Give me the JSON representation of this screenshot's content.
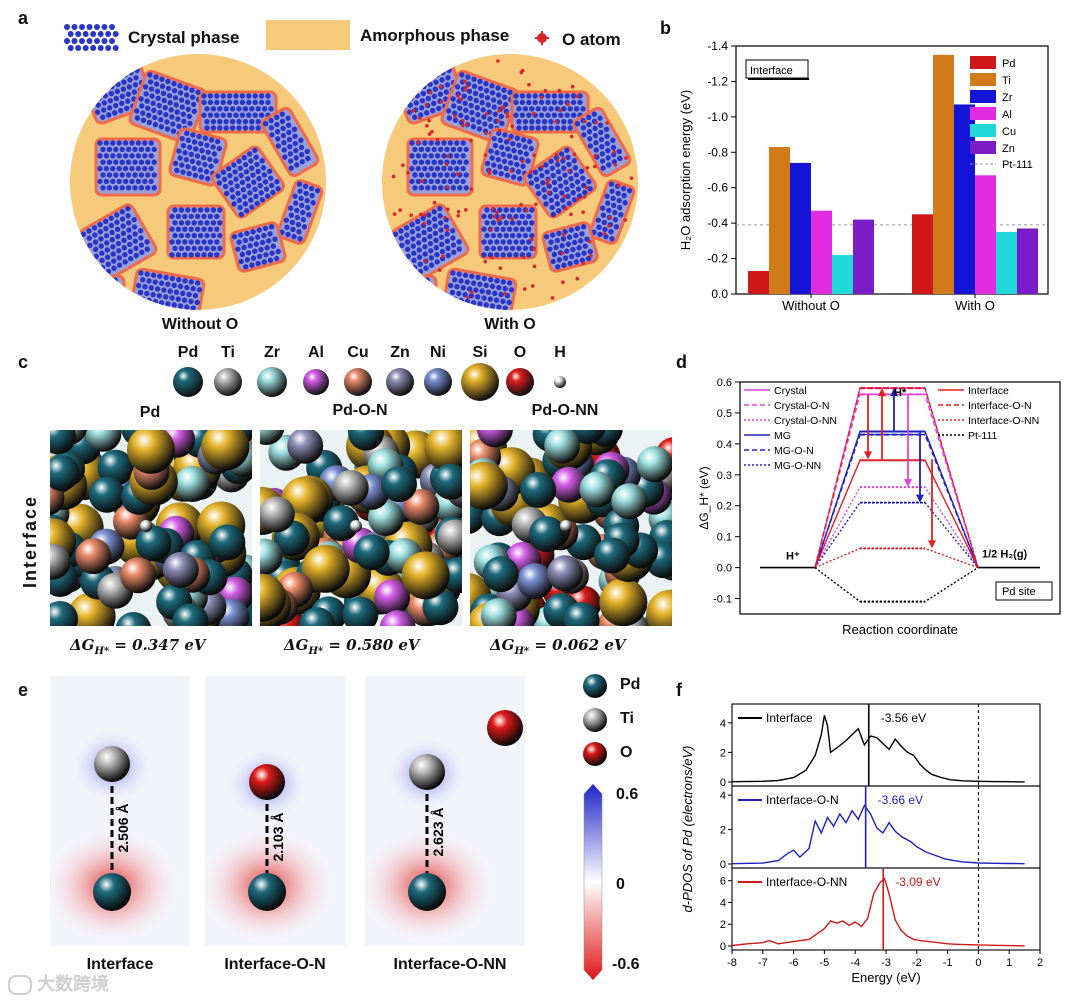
{
  "panel_labels": {
    "a": "a",
    "b": "b",
    "c": "c",
    "d": "d",
    "e": "e",
    "f": "f"
  },
  "panel_a": {
    "legend": {
      "crystal": "Crystal phase",
      "amorphous": "Amorphous phase",
      "o_atom": "O atom"
    },
    "captions": {
      "left": "Without O",
      "right": "With O"
    },
    "colors": {
      "amorphous": "#f7c97a",
      "crystal": "#2a35c8",
      "outline": "#f06a4a",
      "o_atom": "#d7262a"
    }
  },
  "panel_c": {
    "elements": [
      "Pd",
      "Ti",
      "Zr",
      "Al",
      "Cu",
      "Zn",
      "Ni",
      "Si",
      "O",
      "H"
    ],
    "element_colors": [
      "#1e6b7d",
      "#b9b9b9",
      "#9fe0e0",
      "#d35ee6",
      "#e98a6a",
      "#8e8fb6",
      "#7b8fd2",
      "#e4b32a",
      "#e01c1c",
      "#f0f0f0"
    ],
    "titles": [
      "Pd",
      "Pd-O-N",
      "Pd-O-NN"
    ],
    "side_label": "Interface",
    "dg_values": [
      "ΔG_{H*} = 0.347 eV",
      "ΔG_{H*} = 0.580 eV",
      "ΔG_{H*} = 0.062 eV"
    ],
    "dg_prefix": "ΔG",
    "dg_sub": "H*",
    "dg_numbers": [
      "= 0.347 eV",
      "= 0.580 eV",
      "= 0.062 eV"
    ]
  },
  "panel_e": {
    "legend": [
      "Pd",
      "Ti",
      "O"
    ],
    "legend_colors": [
      "#1e6b7d",
      "#bdbdbd",
      "#dd1a1a"
    ],
    "distances": [
      "2.506 Å",
      "2.103 Å",
      "2.623 Å"
    ],
    "captions": [
      "Interface",
      "Interface-O-N",
      "Interface-O-NN"
    ],
    "colorbar": {
      "max": "0.6",
      "mid": "0",
      "min": "-0.6"
    }
  },
  "watermark": "大数跨境",
  "chart_data": [
    {
      "panel": "b",
      "type": "bar",
      "categories": [
        "Without O",
        "With O"
      ],
      "series": [
        {
          "name": "Pd",
          "color": "#d01818",
          "values": [
            -0.13,
            -0.45
          ]
        },
        {
          "name": "Ti",
          "color": "#d07a1a",
          "values": [
            -0.83,
            -1.35
          ]
        },
        {
          "name": "Zr",
          "color": "#1414d6",
          "values": [
            -0.74,
            -1.07
          ]
        },
        {
          "name": "Al",
          "color": "#e22ce2",
          "values": [
            -0.47,
            -0.67
          ]
        },
        {
          "name": "Cu",
          "color": "#22d8d8",
          "values": [
            -0.22,
            -0.35
          ]
        },
        {
          "name": "Zn",
          "color": "#7a1cc8",
          "values": [
            -0.42,
            -0.37
          ]
        }
      ],
      "reference": {
        "name": "Pt-111",
        "value": -0.39
      },
      "title_box": "Interface",
      "ylabel": "H₂O adsorption energy (eV)",
      "ylim": [
        0.0,
        -1.4
      ],
      "yticks": [
        "0.0",
        "-0.2",
        "-0.4",
        "-0.6",
        "-0.8",
        "-1.0",
        "-1.2",
        "-1.4"
      ],
      "ytick_values": [
        0.0,
        -0.2,
        -0.4,
        -0.6,
        -0.8,
        -1.0,
        -1.2,
        -1.4
      ]
    },
    {
      "panel": "d",
      "type": "line",
      "xlabel": "Reaction coordinate",
      "ylabel": "ΔG_H* (eV)",
      "ylim": [
        -0.15,
        0.6
      ],
      "yticks": [
        "-0.1",
        "0.0",
        "0.1",
        "0.2",
        "0.3",
        "0.4",
        "0.5",
        "0.6"
      ],
      "ytick_values": [
        -0.1,
        0.0,
        0.1,
        0.2,
        0.3,
        0.4,
        0.5,
        0.6
      ],
      "state_labels": [
        "H⁺",
        "H*",
        "1/2 H₂(g)"
      ],
      "site_box": "Pd site",
      "series": [
        {
          "name": "Crystal",
          "color": "#e040e0",
          "dash": "solid",
          "value": 0.58
        },
        {
          "name": "Crystal-O-N",
          "color": "#e040e0",
          "dash": "dashed",
          "value": 0.56
        },
        {
          "name": "Crystal-O-NN",
          "color": "#e040e0",
          "dash": "dotted",
          "value": 0.26
        },
        {
          "name": "MG",
          "color": "#2020c0",
          "dash": "solid",
          "value": 0.44
        },
        {
          "name": "MG-O-N",
          "color": "#2020c0",
          "dash": "dashed",
          "value": 0.43
        },
        {
          "name": "MG-O-NN",
          "color": "#2020c0",
          "dash": "dotted",
          "value": 0.21
        },
        {
          "name": "Interface",
          "color": "#e02020",
          "dash": "solid",
          "value": 0.347
        },
        {
          "name": "Interface-O-N",
          "color": "#e02020",
          "dash": "dashed",
          "value": 0.58
        },
        {
          "name": "Interface-O-NN",
          "color": "#e02020",
          "dash": "dotted",
          "value": 0.062
        },
        {
          "name": "Pt-111",
          "color": "#000000",
          "dash": "dotted",
          "value": -0.11
        }
      ]
    },
    {
      "panel": "f",
      "type": "line",
      "xlabel": "Energy (eV)",
      "ylabel": "d-PDOS of Pd (electrons/eV)",
      "xlim": [
        -8,
        2
      ],
      "xticks": [
        "-8",
        "-7",
        "-6",
        "-5",
        "-4",
        "-3",
        "-2",
        "-1",
        "0",
        "1",
        "2"
      ],
      "xtick_values": [
        -8,
        -7,
        -6,
        -5,
        -4,
        -3,
        -2,
        -1,
        0,
        1,
        2
      ],
      "subplots": [
        {
          "name": "Interface",
          "color": "#000000",
          "center_label": "-3.56 eV",
          "center": -3.56,
          "yticks": [
            "0",
            "2",
            "4"
          ],
          "ytick_values": [
            0,
            2,
            4
          ],
          "ymax": 5,
          "x": [
            -8,
            -7,
            -6.5,
            -6,
            -5.6,
            -5.3,
            -5.1,
            -5.0,
            -4.9,
            -4.8,
            -4.6,
            -4.3,
            -4.1,
            -3.9,
            -3.7,
            -3.5,
            -3.3,
            -3.1,
            -2.9,
            -2.7,
            -2.5,
            -2.3,
            -2.1,
            -1.9,
            -1.7,
            -1.5,
            -1.2,
            -0.9,
            -0.5,
            0,
            0.5,
            1,
            1.5
          ],
          "y": [
            0.02,
            0.05,
            0.1,
            0.3,
            0.8,
            1.8,
            3.2,
            4.5,
            3.8,
            2.0,
            2.3,
            2.8,
            3.2,
            3.6,
            2.5,
            3.1,
            3.0,
            2.6,
            2.2,
            2.9,
            2.4,
            2.0,
            1.8,
            1.2,
            0.8,
            0.5,
            0.3,
            0.15,
            0.08,
            0.05,
            0.03,
            0.02,
            0.01
          ]
        },
        {
          "name": "Interface-O-N",
          "color": "#2020c0",
          "center_label": "-3.66 eV",
          "center": -3.66,
          "yticks": [
            "0",
            "2",
            "4"
          ],
          "ytick_values": [
            0,
            2,
            4
          ],
          "ymax": 4.3,
          "x": [
            -8,
            -7,
            -6.5,
            -6.2,
            -6.0,
            -5.8,
            -5.5,
            -5.3,
            -5.1,
            -4.9,
            -4.7,
            -4.5,
            -4.3,
            -4.1,
            -3.9,
            -3.7,
            -3.5,
            -3.3,
            -3.1,
            -2.9,
            -2.7,
            -2.5,
            -2.2,
            -2.0,
            -1.7,
            -1.4,
            -1.1,
            -0.8,
            -0.5,
            0,
            0.5,
            1,
            1.5
          ],
          "y": [
            0.02,
            0.05,
            0.2,
            0.6,
            0.8,
            0.4,
            0.9,
            2.5,
            1.8,
            2.7,
            2.2,
            2.9,
            2.4,
            3.1,
            2.6,
            3.4,
            2.9,
            2.1,
            1.8,
            2.4,
            1.9,
            1.6,
            1.3,
            1.0,
            0.7,
            0.5,
            0.3,
            0.2,
            0.12,
            0.06,
            0.04,
            0.03,
            0.02
          ]
        },
        {
          "name": "Interface-O-NN",
          "color": "#d01818",
          "center_label": "-3.09 eV",
          "center": -3.09,
          "yticks": [
            "0",
            "2",
            "4",
            "6"
          ],
          "ytick_values": [
            0,
            2,
            4,
            6
          ],
          "ymax": 6.8,
          "x": [
            -8,
            -7.5,
            -7.0,
            -6.8,
            -6.5,
            -6.0,
            -5.5,
            -5.2,
            -5.0,
            -4.8,
            -4.6,
            -4.4,
            -4.2,
            -4.0,
            -3.8,
            -3.6,
            -3.4,
            -3.2,
            -3.05,
            -2.9,
            -2.7,
            -2.5,
            -2.3,
            -2.1,
            -1.9,
            -1.6,
            -1.3,
            -1.0,
            -0.6,
            0,
            0.5,
            1,
            1.5
          ],
          "y": [
            0.05,
            0.2,
            0.3,
            0.5,
            0.2,
            0.4,
            0.6,
            1.2,
            1.6,
            2.3,
            2.1,
            2.3,
            1.9,
            2.2,
            1.8,
            2.5,
            4.8,
            5.8,
            6.2,
            4.8,
            2.4,
            1.4,
            0.9,
            0.6,
            0.5,
            0.4,
            0.3,
            0.2,
            0.15,
            0.1,
            0.06,
            0.04,
            0.02
          ]
        }
      ]
    }
  ]
}
